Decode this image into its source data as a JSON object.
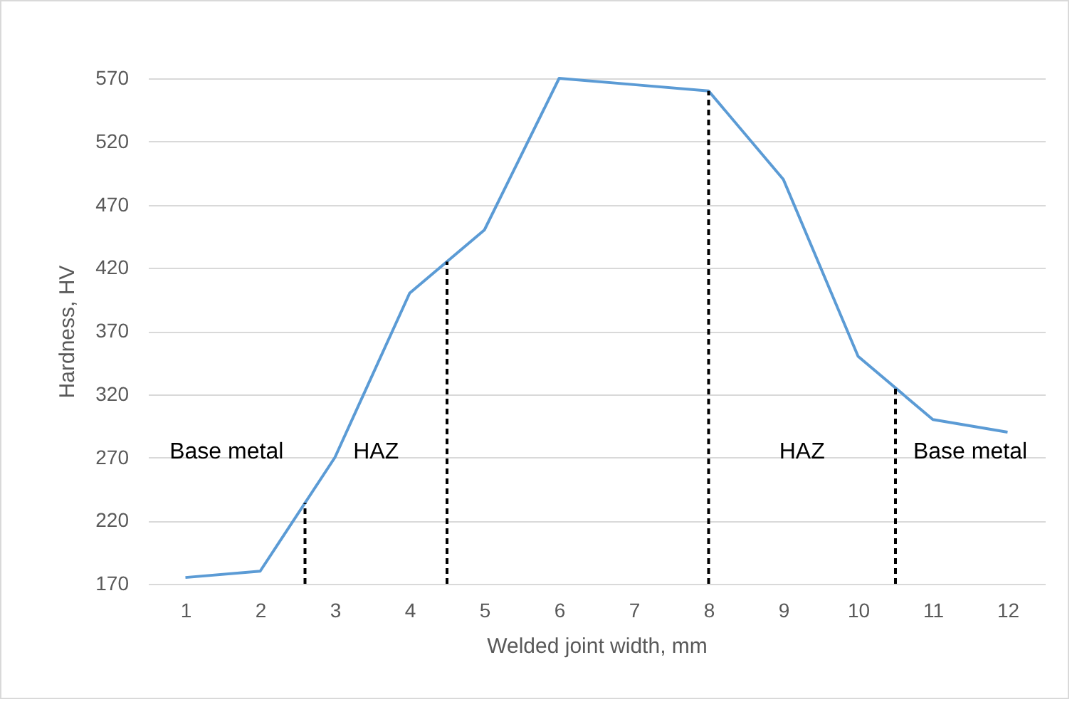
{
  "chart_data": {
    "type": "line",
    "xlabel": "Welded joint width, mm",
    "ylabel": "Hardness, HV",
    "x": [
      1,
      2,
      3,
      4,
      5,
      6,
      7,
      8,
      9,
      10,
      11,
      12
    ],
    "series": [
      {
        "color": "#5b9bd5",
        "values": [
          175,
          180,
          270,
          400,
          450,
          570,
          565,
          560,
          490,
          350,
          300,
          290
        ]
      }
    ],
    "xlim": [
      0.5,
      12.5
    ],
    "xticks": [
      1,
      2,
      3,
      4,
      5,
      6,
      7,
      8,
      9,
      10,
      11,
      12
    ],
    "ylim": [
      170,
      570
    ],
    "yticks": [
      170,
      220,
      270,
      320,
      370,
      420,
      470,
      520,
      570
    ],
    "grid": "y",
    "marker": "none",
    "line_style": "solid",
    "ref_lines": [
      {
        "axis": "x",
        "value": 2.6,
        "color": "#000000",
        "line_style": "dashed"
      },
      {
        "axis": "x",
        "value": 4.5,
        "color": "#000000",
        "line_style": "dashed"
      },
      {
        "axis": "x",
        "value": 8,
        "color": "#000000",
        "line_style": "dashed"
      },
      {
        "axis": "x",
        "value": 10.5,
        "color": "#000000",
        "line_style": "dashed"
      }
    ],
    "annotations": [
      "Base metal",
      "HAZ",
      "HAZ",
      "Base metal"
    ]
  }
}
